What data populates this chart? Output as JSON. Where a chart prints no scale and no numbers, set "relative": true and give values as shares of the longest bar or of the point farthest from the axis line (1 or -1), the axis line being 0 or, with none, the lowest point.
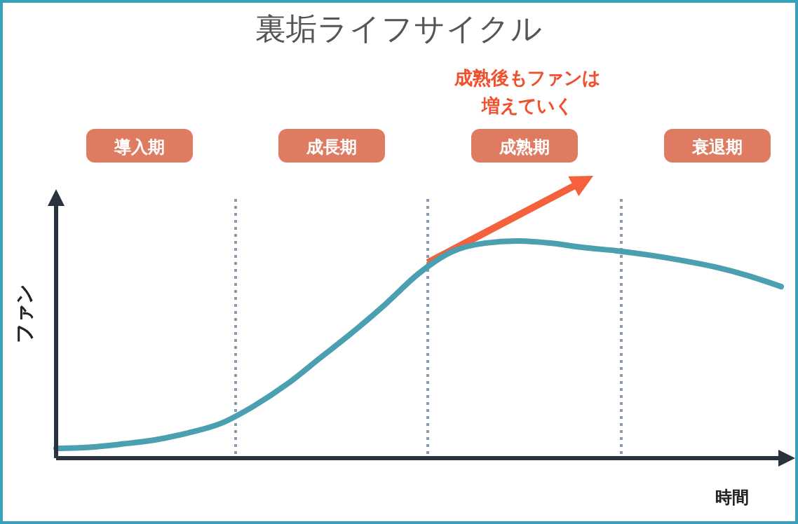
{
  "chart_data": {
    "type": "line",
    "title": "裏垢ライフサイクル",
    "ylabel": "ファン",
    "xlabel": "時間",
    "relative": true,
    "categories": [
      null,
      null,
      null,
      null,
      null,
      null,
      null,
      null,
      null,
      null,
      null,
      null,
      null,
      null,
      null,
      null,
      null,
      null,
      null,
      null,
      null,
      null,
      null
    ],
    "series": [
      {
        "color": "#4a9fb0",
        "values": [
          0.045,
          0.05,
          0.065,
          0.084,
          0.116,
          0.16,
          0.24,
          0.34,
          0.46,
          0.58,
          0.71,
          0.85,
          0.95,
          0.99,
          1,
          0.99,
          0.97,
          0.955,
          0.935,
          0.91,
          0.88,
          0.84,
          0.79
        ]
      }
    ],
    "annotations": [
      "導入期",
      "成長期",
      "成熟期",
      "衰退期",
      "成熟後もファンは",
      "増えていく"
    ],
    "line_style": "solid"
  }
}
